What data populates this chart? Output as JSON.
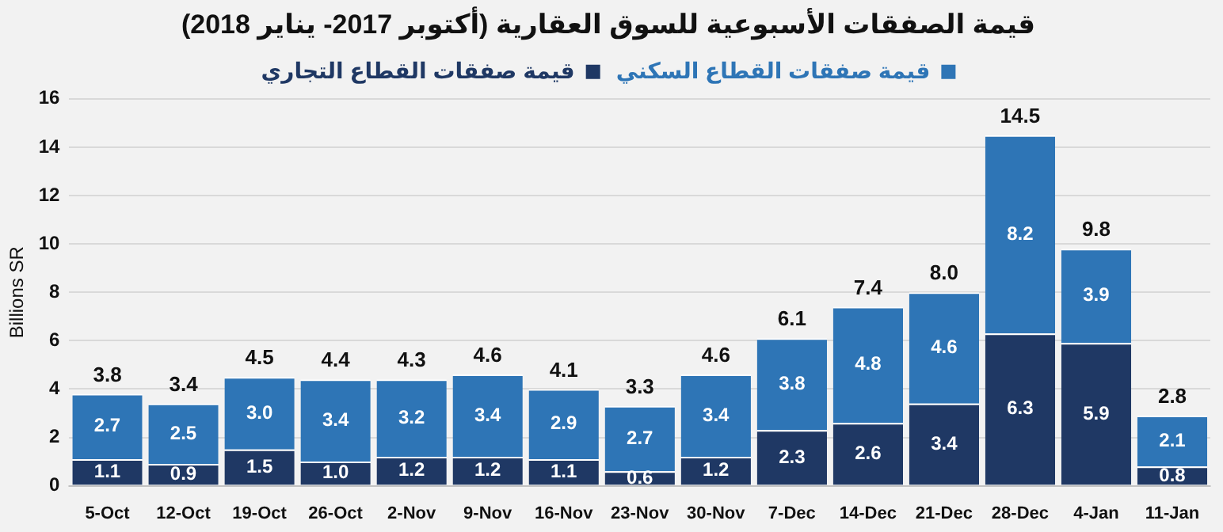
{
  "chart_data": {
    "type": "bar",
    "stacked": true,
    "title": "قيمة الصفقات الأسبوعية للسوق العقارية (أكتوبر 2017- يناير 2018)",
    "ylabel": "Billions SR",
    "categories": [
      "5-Oct",
      "12-Oct",
      "19-Oct",
      "26-Oct",
      "2-Nov",
      "9-Nov",
      "16-Nov",
      "23-Nov",
      "30-Nov",
      "7-Dec",
      "14-Dec",
      "21-Dec",
      "28-Dec",
      "4-Jan",
      "11-Jan"
    ],
    "series": [
      {
        "name": "قيمة صفقات القطاع التجاري",
        "color": "#1f3864",
        "values": [
          1.1,
          0.9,
          1.5,
          1.0,
          1.2,
          1.2,
          1.1,
          0.6,
          1.2,
          2.3,
          2.6,
          3.4,
          6.3,
          5.9,
          0.8
        ],
        "value_labels": [
          "1.1",
          "0.9",
          "1.5",
          "1.0",
          "1.2",
          "1.2",
          "1.1",
          "0.6",
          "1.2",
          "2.3",
          "2.6",
          "3.4",
          "6.3",
          "5.9",
          "0.8"
        ]
      },
      {
        "name": "قيمة صفقات القطاع السكني",
        "color": "#2e75b6",
        "values": [
          2.7,
          2.5,
          3.0,
          3.4,
          3.2,
          3.4,
          2.9,
          2.7,
          3.4,
          3.8,
          4.8,
          4.6,
          8.2,
          3.9,
          2.1
        ],
        "value_labels": [
          "2.7",
          "2.5",
          "3.0",
          "3.4",
          "3.2",
          "3.4",
          "2.9",
          "2.7",
          "3.4",
          "3.8",
          "4.8",
          "4.6",
          "8.2",
          "3.9",
          "2.1"
        ]
      }
    ],
    "totals": [
      "3.8",
      "3.4",
      "4.5",
      "4.4",
      "4.3",
      "4.6",
      "4.1",
      "3.3",
      "4.6",
      "6.1",
      "7.4",
      "8.0",
      "14.5",
      "9.8",
      "2.8"
    ],
    "ylim": [
      0,
      16
    ],
    "yticks": [
      0,
      2,
      4,
      6,
      8,
      10,
      12,
      14,
      16
    ],
    "grid": "y",
    "legend": "top"
  }
}
